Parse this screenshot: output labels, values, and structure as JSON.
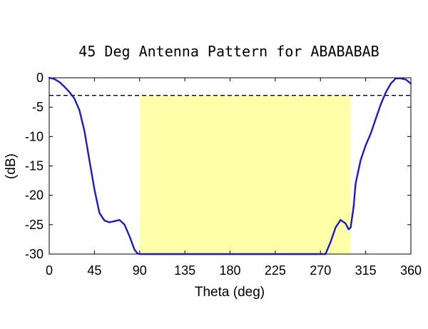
{
  "chart_data": {
    "type": "line",
    "title": "45 Deg Antenna Pattern for ABABABAB",
    "xlabel": "Theta (deg)",
    "ylabel": "(dB)",
    "xlim": [
      0,
      360
    ],
    "ylim": [
      -30,
      0
    ],
    "xticks": [
      0,
      45,
      90,
      135,
      180,
      225,
      270,
      315,
      360
    ],
    "yticks": [
      0,
      -5,
      -10,
      -15,
      -20,
      -25,
      -30
    ],
    "grid": false,
    "colors": {
      "line": "#1a1acc",
      "band": "#ffffaa",
      "threshold": "#000000"
    },
    "threshold": {
      "value": -3,
      "style": "dashed"
    },
    "highlight_band": {
      "x_start": 90,
      "x_end": 300,
      "y_start": -30,
      "y_end": -3
    },
    "series": [
      {
        "x": [
          0,
          5,
          10,
          15,
          20,
          25,
          30,
          35,
          40,
          45,
          50,
          55,
          60,
          65,
          70,
          75,
          80,
          85,
          88,
          90,
          95,
          180,
          265,
          270,
          275,
          280,
          285,
          290,
          295,
          298,
          300,
          303,
          305,
          310,
          315,
          320,
          325,
          330,
          335,
          340,
          345,
          350,
          355,
          360
        ],
        "values": [
          0,
          -0.2,
          -0.7,
          -1.5,
          -2.4,
          -3.5,
          -5.5,
          -9,
          -14,
          -19,
          -23,
          -24.3,
          -24.6,
          -24.4,
          -24.2,
          -25,
          -27,
          -29.3,
          -29.9,
          -30,
          -30,
          -30,
          -30,
          -30,
          -30,
          -28,
          -25.5,
          -24.2,
          -24.8,
          -25.8,
          -25.5,
          -22,
          -18,
          -14,
          -11.5,
          -9.5,
          -7,
          -4.5,
          -2.5,
          -1,
          -0.1,
          -0.1,
          -0.3,
          -1
        ]
      }
    ]
  }
}
